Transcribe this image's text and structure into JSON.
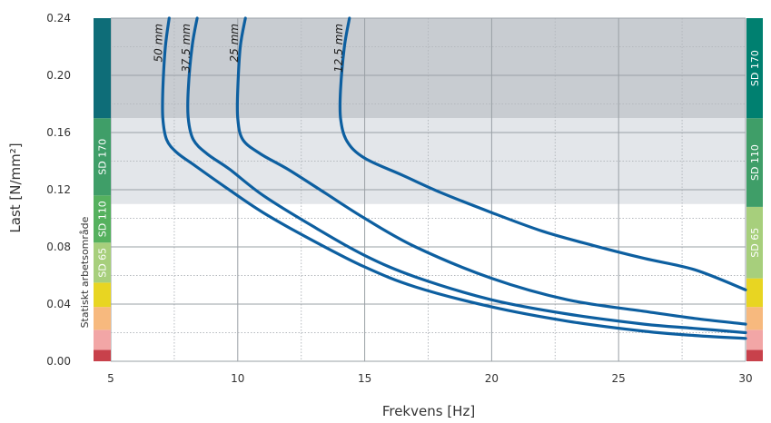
{
  "chart_data": {
    "type": "line",
    "xlabel": "Frekvens [Hz]",
    "ylabel": "Last [N/mm²]",
    "xlim": [
      5,
      30
    ],
    "ylim": [
      0,
      0.24
    ],
    "x_ticks": [
      "5",
      "10",
      "15",
      "20",
      "25",
      "30"
    ],
    "y_ticks": [
      "0.00",
      "0.04",
      "0.08",
      "0.12",
      "0.16",
      "0.20",
      "0.24"
    ],
    "left_scale_title": "Statiskt arbetsområde",
    "regions": [
      {
        "from": 0.17,
        "to": 0.24,
        "color": "#c8ccd1"
      },
      {
        "from": 0.11,
        "to": 0.17,
        "color": "#e3e6ea"
      }
    ],
    "left_bands": [
      {
        "label": "",
        "from": 0.0,
        "to": 0.008,
        "color": "#c8414b"
      },
      {
        "label": "",
        "from": 0.008,
        "to": 0.022,
        "color": "#f2a6a6"
      },
      {
        "label": "",
        "from": 0.022,
        "to": 0.038,
        "color": "#f7b97e"
      },
      {
        "label": "",
        "from": 0.038,
        "to": 0.055,
        "color": "#e8d522"
      },
      {
        "label": "SD 65",
        "from": 0.055,
        "to": 0.083,
        "color": "#a7cf7c"
      },
      {
        "label": "SD 110",
        "from": 0.083,
        "to": 0.116,
        "color": "#55b15e"
      },
      {
        "label": "SD 170",
        "from": 0.116,
        "to": 0.17,
        "color": "#3f9e68"
      },
      {
        "label": "",
        "from": 0.17,
        "to": 0.24,
        "color": "#0e6d78"
      }
    ],
    "right_bands": [
      {
        "label": "",
        "from": 0.0,
        "to": 0.008,
        "color": "#c8414b"
      },
      {
        "label": "",
        "from": 0.008,
        "to": 0.022,
        "color": "#f2a6a6"
      },
      {
        "label": "",
        "from": 0.022,
        "to": 0.038,
        "color": "#f7b97e"
      },
      {
        "label": "",
        "from": 0.038,
        "to": 0.058,
        "color": "#e8d522"
      },
      {
        "label": "SD 65",
        "from": 0.058,
        "to": 0.108,
        "color": "#a7cf7c"
      },
      {
        "label": "SD 110",
        "from": 0.108,
        "to": 0.17,
        "color": "#3f9e68"
      },
      {
        "label": "SD 170",
        "from": 0.17,
        "to": 0.24,
        "color": "#008070"
      }
    ],
    "curve_color": "#0d5fa0",
    "series": [
      {
        "name": "50 mm",
        "x": [
          7.3,
          7.15,
          7.05,
          7.05,
          7.2,
          7.6,
          8.3,
          9.5,
          11,
          13,
          15,
          17,
          20,
          23,
          26,
          28,
          30
        ],
        "y": [
          0.24,
          0.22,
          0.19,
          0.17,
          0.155,
          0.146,
          0.137,
          0.122,
          0.104,
          0.084,
          0.066,
          0.052,
          0.038,
          0.028,
          0.021,
          0.018,
          0.016
        ]
      },
      {
        "name": "37.5 mm",
        "x": [
          8.4,
          8.2,
          8.05,
          8.05,
          8.25,
          8.8,
          9.7,
          11,
          13,
          15,
          17,
          20,
          23,
          26,
          28,
          30
        ],
        "y": [
          0.24,
          0.22,
          0.19,
          0.17,
          0.155,
          0.145,
          0.134,
          0.116,
          0.094,
          0.074,
          0.059,
          0.043,
          0.033,
          0.026,
          0.023,
          0.02
        ]
      },
      {
        "name": "25 mm",
        "x": [
          10.3,
          10.1,
          10.0,
          10.0,
          10.2,
          10.9,
          12,
          13.5,
          15,
          17,
          20,
          23,
          26,
          28,
          30
        ],
        "y": [
          0.24,
          0.22,
          0.19,
          0.17,
          0.155,
          0.145,
          0.134,
          0.117,
          0.1,
          0.08,
          0.058,
          0.043,
          0.035,
          0.03,
          0.026
        ]
      },
      {
        "name": "12.5 mm",
        "x": [
          14.4,
          14.2,
          14.05,
          14.05,
          14.3,
          15,
          16.5,
          18,
          20,
          22,
          24,
          26,
          28,
          30
        ],
        "y": [
          0.24,
          0.22,
          0.19,
          0.17,
          0.154,
          0.142,
          0.13,
          0.118,
          0.104,
          0.091,
          0.081,
          0.072,
          0.064,
          0.05
        ]
      }
    ]
  }
}
